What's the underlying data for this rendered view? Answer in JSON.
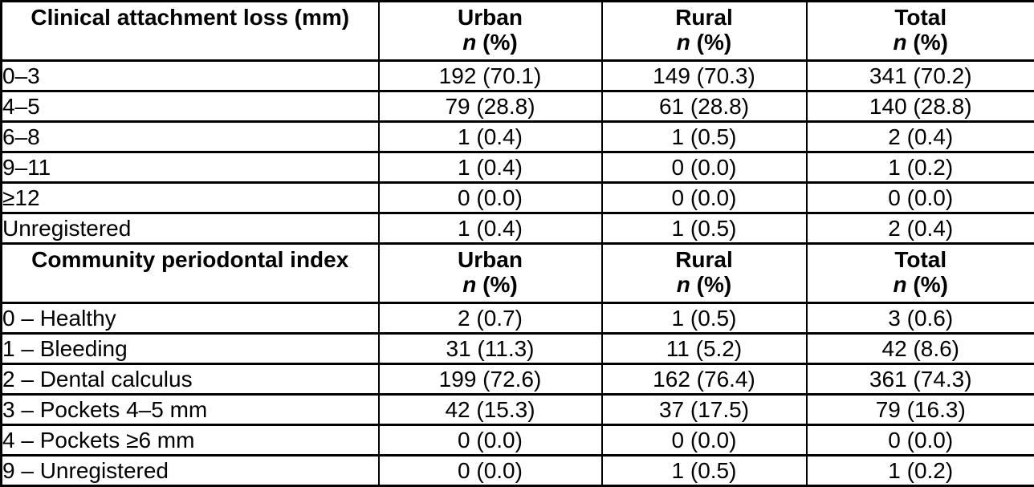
{
  "table": {
    "count_unit": {
      "italic": "n",
      "rest": " (%)"
    },
    "colors": {
      "border": "#000000",
      "text": "#000000",
      "background": "#ffffff"
    },
    "sections": [
      {
        "title": "Clinical attachment loss (mm)",
        "columns": [
          "Urban",
          "Rural",
          "Total"
        ],
        "rows": [
          {
            "label": "0–3",
            "urban": "192 (70.1)",
            "rural": "149 (70.3)",
            "total": "341 (70.2)"
          },
          {
            "label": "4–5",
            "urban": "79 (28.8)",
            "rural": "61 (28.8)",
            "total": "140 (28.8)"
          },
          {
            "label": "6–8",
            "urban": "1 (0.4)",
            "rural": "1 (0.5)",
            "total": "2 (0.4)"
          },
          {
            "label": "9–11",
            "urban": "1 (0.4)",
            "rural": "0 (0.0)",
            "total": "1 (0.2)"
          },
          {
            "label": "≥12",
            "urban": "0 (0.0)",
            "rural": "0 (0.0)",
            "total": "0 (0.0)"
          },
          {
            "label": "Unregistered",
            "urban": "1 (0.4)",
            "rural": "1 (0.5)",
            "total": "2 (0.4)"
          }
        ]
      },
      {
        "title": "Community periodontal index",
        "columns": [
          "Urban",
          "Rural",
          "Total"
        ],
        "rows": [
          {
            "label": "0 – Healthy",
            "urban": "2 (0.7)",
            "rural": "1 (0.5)",
            "total": "3 (0.6)"
          },
          {
            "label": "1 – Bleeding",
            "urban": "31 (11.3)",
            "rural": "11 (5.2)",
            "total": "42 (8.6)"
          },
          {
            "label": "2 – Dental calculus",
            "urban": "199 (72.6)",
            "rural": "162 (76.4)",
            "total": "361 (74.3)"
          },
          {
            "label": "3 – Pockets 4–5 mm",
            "urban": "42 (15.3)",
            "rural": "37 (17.5)",
            "total": "79 (16.3)"
          },
          {
            "label": "4 – Pockets ≥6 mm",
            "urban": "0 (0.0)",
            "rural": "0 (0.0)",
            "total": "0 (0.0)"
          },
          {
            "label": "9 – Unregistered",
            "urban": "0 (0.0)",
            "rural": "1 (0.5)",
            "total": "1 (0.2)"
          }
        ]
      }
    ]
  }
}
